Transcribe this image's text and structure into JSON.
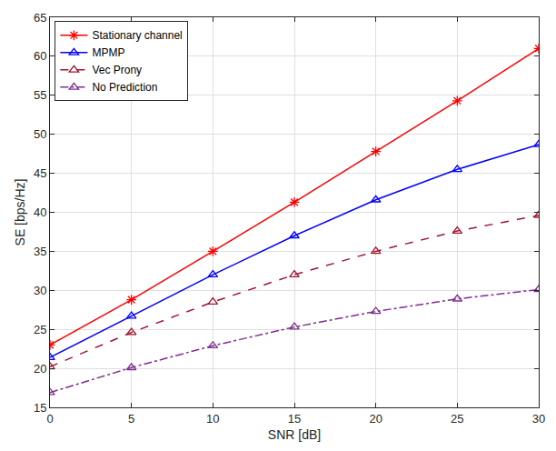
{
  "chart_data": {
    "type": "line",
    "x_label": "SNR [dB]",
    "y_label": "SE [bps/Hz]",
    "x": [
      0,
      5,
      10,
      15,
      20,
      25,
      30
    ],
    "series": [
      {
        "name": "Stationary channel",
        "color": "#ff0000",
        "marker": "asterisk",
        "line_style": "solid",
        "values": [
          23,
          28.8,
          35,
          41.3,
          47.8,
          54.3,
          61
        ]
      },
      {
        "name": "MPMP",
        "color": "#0000ff",
        "marker": "triangle",
        "line_style": "solid",
        "values": [
          21.4,
          26.7,
          32,
          37,
          41.6,
          45.5,
          48.7
        ]
      },
      {
        "name": "Vec Prony",
        "color": "#a2142f",
        "marker": "triangle",
        "line_style": "dashed",
        "values": [
          20.2,
          24.6,
          28.5,
          32,
          35,
          37.6,
          39.6
        ]
      },
      {
        "name": "No Prediction",
        "color": "#7e2f8e",
        "marker": "triangle",
        "line_style": "dashdot",
        "values": [
          16.9,
          20.1,
          22.9,
          25.3,
          27.3,
          28.9,
          30.1
        ]
      }
    ],
    "xlim": [
      0,
      30
    ],
    "xticks": [
      0,
      5,
      10,
      15,
      20,
      25,
      30
    ],
    "ylim": [
      15,
      65
    ],
    "yticks": [
      15,
      20,
      25,
      30,
      35,
      40,
      45,
      50,
      55,
      60,
      65
    ],
    "grid": true,
    "legend": "top-left"
  }
}
